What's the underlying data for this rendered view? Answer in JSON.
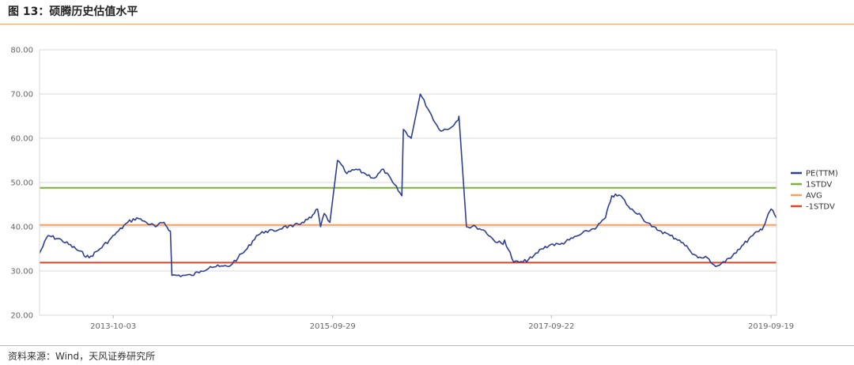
{
  "header": {
    "title": "图 13：硕腾历史估值水平"
  },
  "footer": {
    "source": "资料来源：Wind，天风证券研究所"
  },
  "colors": {
    "pe": "#2e3f8f",
    "plus1": "#7bb13a",
    "avg": "#f0a060",
    "minus1": "#d9472b",
    "grid": "#d9d9d9",
    "rule": "#f0a770"
  },
  "chart_data": {
    "type": "line",
    "title": "",
    "xlabel": "",
    "ylabel": "",
    "ylim": [
      20,
      80
    ],
    "yticks": [
      "20.00",
      "30.00",
      "40.00",
      "50.00",
      "60.00",
      "70.00",
      "80.00"
    ],
    "xlim": [
      "2013-02-01",
      "2019-10-07"
    ],
    "xticks": [
      "2013-10-03",
      "2015-09-29",
      "2017-09-22",
      "2019-09-19"
    ],
    "grid": true,
    "legend_position": "right",
    "series": [
      {
        "name": "PE(TTM)",
        "color": "#2e3f8f",
        "x": [
          "2013-02-01",
          "2013-03-01",
          "2013-04-15",
          "2013-06-01",
          "2013-07-15",
          "2013-08-20",
          "2013-09-20",
          "2013-10-20",
          "2013-11-20",
          "2013-12-20",
          "2014-01-20",
          "2014-02-20",
          "2014-03-20",
          "2014-04-10",
          "2014-04-15",
          "2014-05-20",
          "2014-06-20",
          "2014-07-20",
          "2014-08-20",
          "2014-09-20",
          "2014-10-20",
          "2014-11-20",
          "2014-12-20",
          "2015-01-20",
          "2015-02-20",
          "2015-03-20",
          "2015-04-20",
          "2015-05-20",
          "2015-06-20",
          "2015-07-20",
          "2015-08-10",
          "2015-08-20",
          "2015-09-01",
          "2015-09-20",
          "2015-10-15",
          "2015-11-15",
          "2015-12-15",
          "2016-01-15",
          "2016-02-15",
          "2016-03-15",
          "2016-04-15",
          "2016-05-15",
          "2016-05-20",
          "2016-06-15",
          "2016-07-15",
          "2016-08-15",
          "2016-09-15",
          "2016-10-15",
          "2016-11-15",
          "2016-11-20",
          "2016-12-15",
          "2017-01-15",
          "2017-02-15",
          "2017-03-15",
          "2017-04-15",
          "2017-04-20",
          "2017-05-20",
          "2017-06-20",
          "2017-07-20",
          "2017-08-20",
          "2017-09-20",
          "2017-10-20",
          "2017-11-20",
          "2017-12-20",
          "2018-01-20",
          "2018-02-20",
          "2018-03-20",
          "2018-04-10",
          "2018-05-10",
          "2018-06-10",
          "2018-07-10",
          "2018-07-20",
          "2018-08-20",
          "2018-09-20",
          "2018-10-20",
          "2018-11-20",
          "2018-12-20",
          "2019-01-20",
          "2019-02-20",
          "2019-03-20",
          "2019-04-20",
          "2019-05-20",
          "2019-06-20",
          "2019-07-20",
          "2019-08-10",
          "2019-08-25",
          "2019-09-10",
          "2019-09-19",
          "2019-10-07"
        ],
        "values": [
          34,
          38,
          37,
          35,
          33,
          35,
          37,
          39,
          41,
          42,
          41,
          40,
          41,
          39,
          29,
          29,
          29,
          30,
          31,
          31,
          31,
          33,
          35,
          38,
          39,
          39,
          40,
          40,
          41,
          42,
          44,
          40,
          43,
          41,
          55,
          52,
          53,
          52,
          51,
          53,
          50,
          47,
          62,
          60,
          70,
          66,
          62,
          62,
          64,
          65,
          40,
          40,
          39,
          37,
          36,
          37,
          32,
          32,
          33,
          35,
          36,
          36,
          37,
          38,
          39,
          40,
          42,
          47,
          47,
          44,
          43,
          42,
          40,
          39,
          38,
          37,
          35,
          33,
          33,
          31,
          32,
          34,
          36,
          38,
          39,
          40,
          43,
          44,
          42
        ]
      },
      {
        "name": "1STDV",
        "color": "#7bb13a",
        "constant": 48.8
      },
      {
        "name": "AVG",
        "color": "#f0a060",
        "constant": 40.4
      },
      {
        "name": "-1STDV",
        "color": "#d9472b",
        "constant": 31.9
      }
    ]
  }
}
